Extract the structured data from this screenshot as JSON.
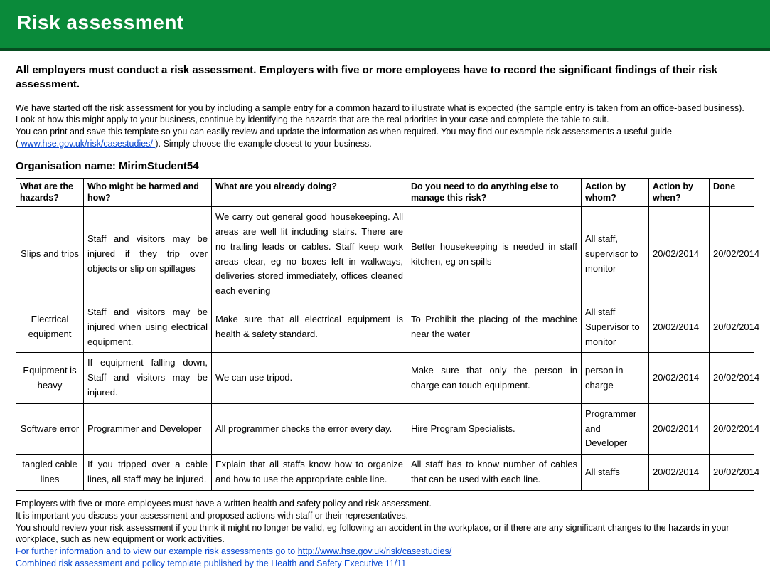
{
  "banner": {
    "title": "Risk assessment"
  },
  "lead": "All employers must conduct a risk assessment. Employers with five or more employees have to record the significant findings of their risk assessment.",
  "intro": {
    "l1": "We have started off the risk assessment for you by including a sample entry for a common hazard to illustrate what is expected (the sample entry is taken from an office-based business).",
    "l2": "Look at how this might apply to your business, continue by identifying the hazards that are the real priorities in your case and complete the table to suit.",
    "l3": "You can print and save this template so you can easily review and update the information as when required. You may find our example risk assessments a useful guide",
    "l4_pre": "(",
    "l4_link": " www.hse.gov.uk/risk/casestudies/ ",
    "l4_post": "). Simply choose the example closest to your business."
  },
  "org_label": "Organisation name: ",
  "org_name": "MirimStudent54",
  "table": {
    "col_widths": [
      "95px",
      "180px",
      "275px",
      "245px",
      "95px",
      "85px",
      "auto"
    ],
    "headers": [
      "What are the hazards?",
      "Who might be harmed and how?",
      "What are you already doing?",
      "Do you need to do anything else to manage this risk?",
      "Action by whom?",
      "Action by when?",
      "Done"
    ],
    "rows": [
      {
        "hazard": "Slips and trips",
        "who": "Staff and visitors may be injured if they trip over objects or slip on spillages",
        "doing": "We carry out general good housekeeping. All areas are well lit including stairs. There are no trailing leads or cables. Staff keep work areas clear, eg no boxes left in walkways, deliveries stored immediately, offices cleaned each evening",
        "else": "Better housekeeping is needed in staff kitchen, eg on spills",
        "whom": "All staff, supervisor to monitor",
        "when": "20/02/2014",
        "done": "20/02/2014"
      },
      {
        "hazard": "Electrical equipment",
        "who": "Staff and visitors may be injured when using electrical equipment.",
        "doing": "Make sure that all electrical equipment is health & safety standard.",
        "else": "To Prohibit the placing of the machine near the water",
        "whom": "All staff Supervisor to monitor",
        "when": "20/02/2014",
        "done": "20/02/2014"
      },
      {
        "hazard": "Equipment is heavy",
        "who": "If equipment falling down, Staff and visitors may be injured.",
        "doing": "We can use tripod.",
        "else": "Make sure that only the person in charge can touch equipment.",
        "whom": "person in charge",
        "when": "20/02/2014",
        "done": "20/02/2014"
      },
      {
        "hazard": "Software error",
        "who": "Programmer and Developer",
        "doing": "All programmer checks the error every day.",
        "else": "Hire Program Specialists.",
        "whom": "Programmer and Developer",
        "when": "20/02/2014",
        "done": "20/02/2014"
      },
      {
        "hazard": "tangled cable lines",
        "who": "If you tripped over a cable lines, all staff may be injured.",
        "doing": "Explain that all staffs know how to organize and how to use the appropriate cable line.",
        "else": "All staff has to know number of cables that can be used with each line.",
        "whom": "All staffs",
        "when": "20/02/2014",
        "done": "20/02/2014"
      }
    ]
  },
  "footer": {
    "l1": "Employers with five or more employees must have a written health and safety policy and risk assessment.",
    "l2": "It is important you discuss your assessment and proposed actions with staff or their representatives.",
    "l3": "You should review your risk assessment if you think it might no longer be valid, eg following an accident in the workplace, or if there are any significant changes to the hazards in your workplace, such as new equipment or work activities.",
    "l4_text": "For further information and to view our example risk assessments go to ",
    "l4_link": "http://www.hse.gov.uk/risk/casestudies/",
    "l5": "Combined risk assessment and policy template published by the Health and Safety Executive 11/11"
  },
  "colors": {
    "banner_bg": "#0a8a3a",
    "banner_border": "#064d20",
    "link": "#0645d1",
    "border": "#000000",
    "background": "#ffffff"
  }
}
